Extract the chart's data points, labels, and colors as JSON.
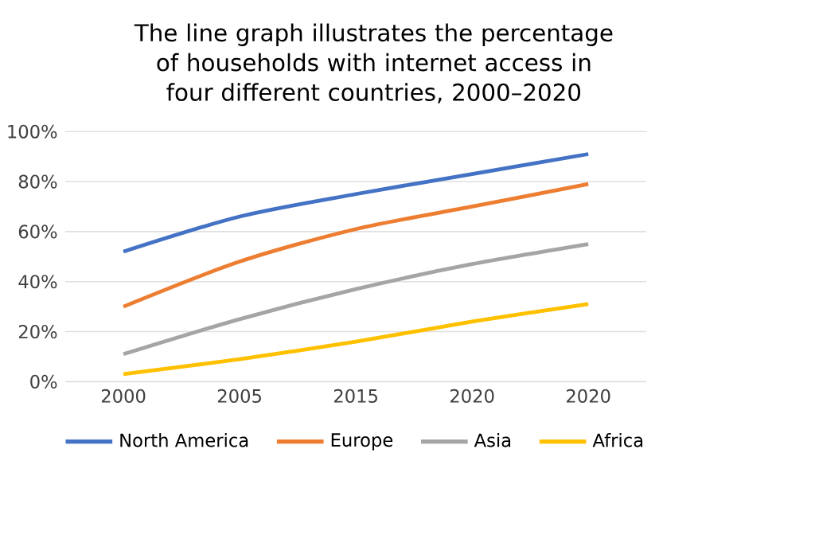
{
  "chart_data": {
    "type": "line",
    "title": "The line graph illustrates the percentage of households with internet access in four different countries, 2000–2020",
    "categories": [
      "2000",
      "2005",
      "2015",
      "2020",
      "2020"
    ],
    "series": [
      {
        "name": "North America",
        "color": "#4472c4",
        "values": [
          52,
          66,
          75,
          83,
          91
        ]
      },
      {
        "name": "Europe",
        "color": "#ed7d31",
        "values": [
          30,
          48,
          61,
          70,
          79
        ]
      },
      {
        "name": "Asia",
        "color": "#a5a5a5",
        "values": [
          11,
          25,
          37,
          47,
          55
        ]
      },
      {
        "name": "Africa",
        "color": "#ffc000",
        "values": [
          3,
          9,
          16,
          24,
          31
        ]
      }
    ],
    "ylim": [
      0,
      100
    ],
    "yticks": [
      {
        "value": 0,
        "label": "0%"
      },
      {
        "value": 20,
        "label": "20%"
      },
      {
        "value": 40,
        "label": "40%"
      },
      {
        "value": 60,
        "label": "60%"
      },
      {
        "value": 80,
        "label": "80%"
      },
      {
        "value": 100,
        "label": "100%"
      }
    ],
    "grid": "y",
    "legend": "bottom",
    "marker": "none",
    "line_style": "solid"
  }
}
